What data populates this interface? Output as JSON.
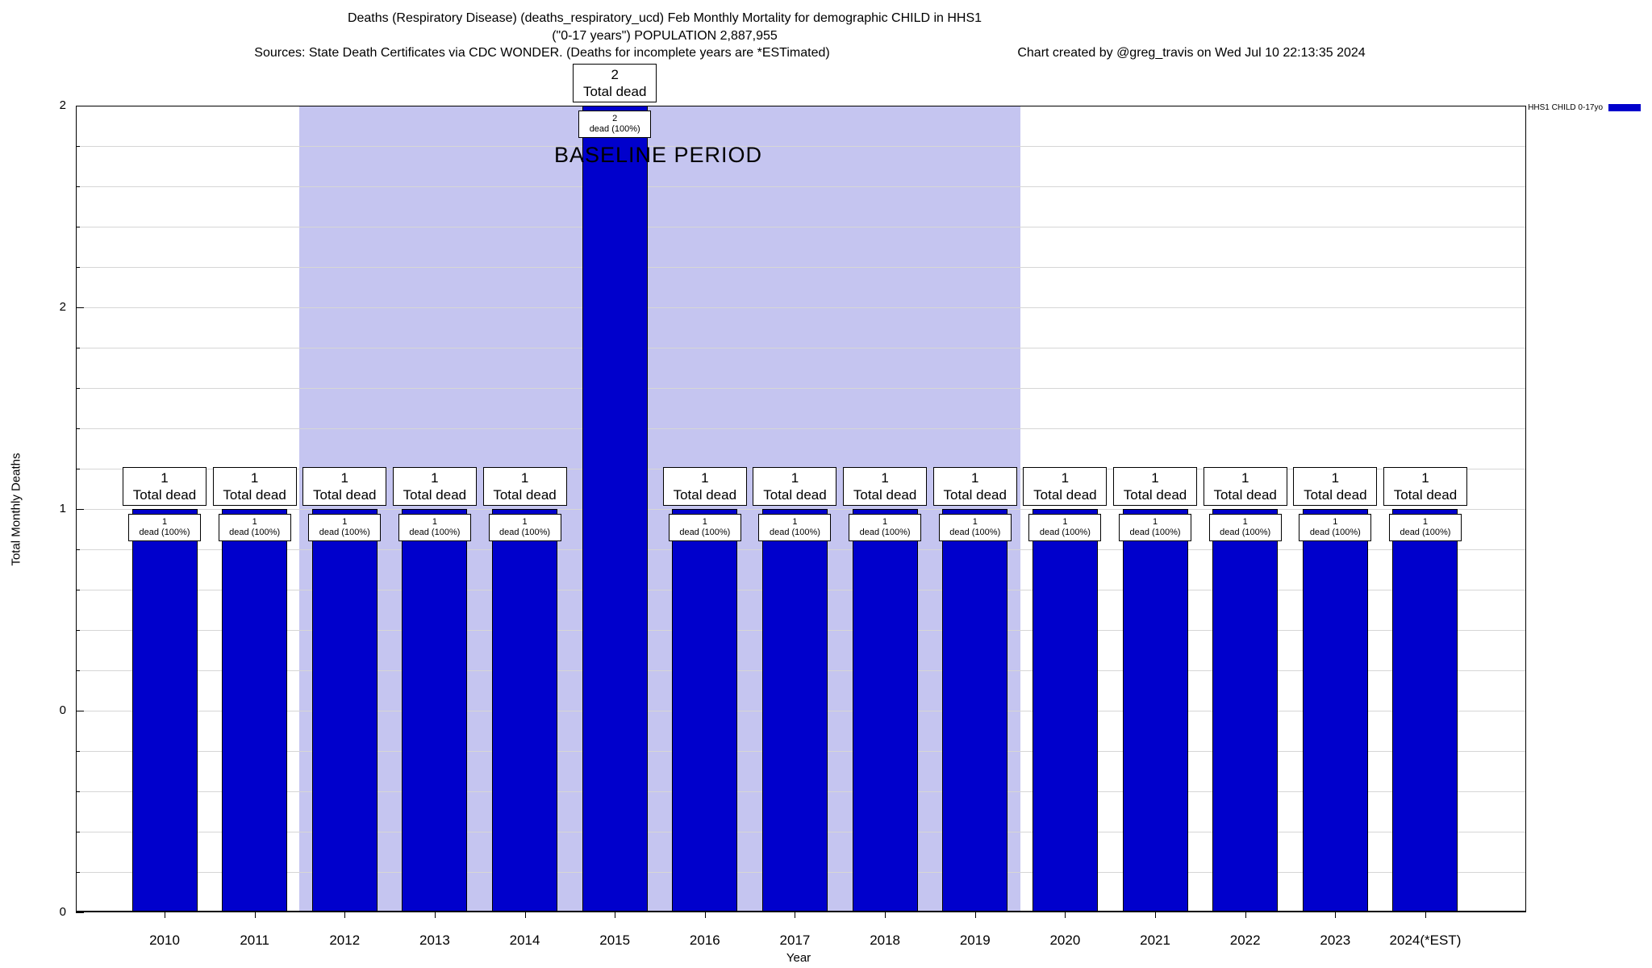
{
  "header": {
    "title_line1": "Deaths (Respiratory Disease) (deaths_respiratory_ucd) Feb Monthly Mortality for demographic CHILD in HHS1",
    "title_line2": "(\"0-17 years\") POPULATION 2,887,955",
    "sources": "Sources: State Death Certificates via CDC WONDER. (Deaths for incomplete years are *ESTimated)",
    "credit": "Chart created by @greg_travis on Wed Jul 10 22:13:35 2024"
  },
  "legend": {
    "label": "HHS1 CHILD 0-17yo",
    "color": "#0000cc"
  },
  "baseline": {
    "label": "BASELINE PERIOD",
    "start_year": "2012",
    "end_year": "2019",
    "color": "#c5c5f0"
  },
  "axes": {
    "xlabel": "Year",
    "ylabel": "Total Monthly Deaths",
    "yticks": [
      {
        "value": 2,
        "label": "2"
      },
      {
        "value": 1.5,
        "label": "2"
      },
      {
        "value": 1,
        "label": "1"
      },
      {
        "value": 0.5,
        "label": "0"
      },
      {
        "value": 0,
        "label": "0"
      }
    ],
    "minor_tick_step": 0.1
  },
  "chart_data": {
    "type": "bar",
    "title": "Deaths (Respiratory Disease) (deaths_respiratory_ucd) Feb Monthly Mortality for demographic CHILD in HHS1",
    "subtitle": "(\"0-17 years\") POPULATION 2,887,955",
    "source_note": "Sources: State Death Certificates via CDC WONDER. (Deaths for incomplete years are *ESTimated)",
    "credit": "Chart created by @greg_travis on Wed Jul 10 22:13:35 2024",
    "xlabel": "Year",
    "ylabel": "Total Monthly Deaths",
    "ylim": [
      0,
      2
    ],
    "grid": "horizontal-minor",
    "legend_position": "top-right",
    "categories": [
      "2010",
      "2011",
      "2012",
      "2013",
      "2014",
      "2015",
      "2016",
      "2017",
      "2018",
      "2019",
      "2020",
      "2021",
      "2022",
      "2023",
      "2024(*EST)"
    ],
    "series": [
      {
        "name": "HHS1 CHILD 0-17yo",
        "color": "#0000cc",
        "values": [
          1,
          1,
          1,
          1,
          1,
          2,
          1,
          1,
          1,
          1,
          1,
          1,
          1,
          1,
          1
        ]
      }
    ],
    "bar_annotations": {
      "outer_line2": "Total dead",
      "inner_line2": "dead (100%)"
    },
    "baseline_period": {
      "label": "BASELINE PERIOD",
      "from": "2012",
      "to": "2019"
    }
  }
}
